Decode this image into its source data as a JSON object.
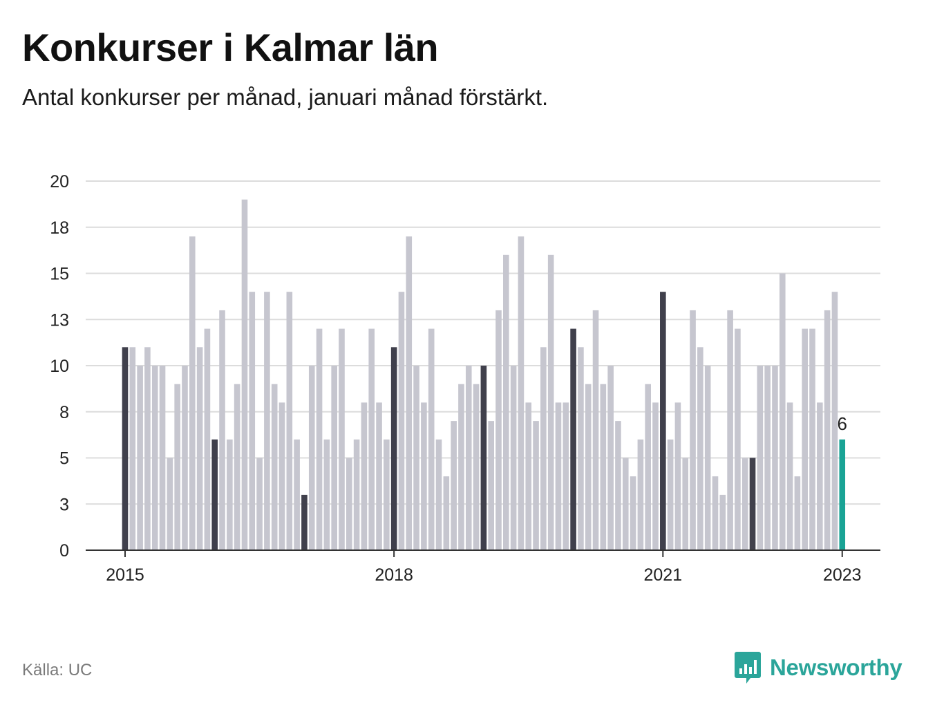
{
  "header": {
    "title": "Konkurser i Kalmar län",
    "subtitle": "Antal konkurser per månad, januari månad förstärkt."
  },
  "footer": {
    "source": "Källa: UC",
    "brand": "Newsworthy"
  },
  "colors": {
    "bar_default": "#c6c6cf",
    "bar_january": "#40404c",
    "bar_latest": "#19a395",
    "grid": "#dcdcdc",
    "axis": "#333333",
    "brand": "#2ba59a"
  },
  "icons": {
    "brand": "bar-chart-speech-bubble-icon"
  },
  "chart_data": {
    "type": "bar",
    "title": "Konkurser i Kalmar län",
    "subtitle": "Antal konkurser per månad, januari månad förstärkt.",
    "xlabel": "",
    "ylabel": "",
    "ylim": [
      0,
      20
    ],
    "y_ticks": [
      0,
      2.5,
      5,
      7.5,
      10,
      12.5,
      15,
      17.5,
      20
    ],
    "y_tick_labels": [
      "0",
      "3",
      "5",
      "8",
      "10",
      "13",
      "15",
      "18",
      "20"
    ],
    "x_ticks": [
      {
        "index": 0,
        "label": "2015"
      },
      {
        "index": 36,
        "label": "2018"
      },
      {
        "index": 72,
        "label": "2021"
      },
      {
        "index": 96,
        "label": "2023"
      }
    ],
    "start": "2015-01",
    "highlight": "januari",
    "latest_label": "6",
    "values": [
      11,
      11,
      10,
      11,
      10,
      10,
      5,
      9,
      10,
      17,
      11,
      12,
      6,
      13,
      6,
      9,
      19,
      14,
      5,
      14,
      9,
      8,
      14,
      6,
      3,
      10,
      12,
      6,
      10,
      12,
      5,
      6,
      8,
      12,
      8,
      6,
      11,
      14,
      17,
      10,
      8,
      12,
      6,
      4,
      7,
      9,
      10,
      9,
      10,
      7,
      13,
      16,
      10,
      17,
      8,
      7,
      11,
      16,
      8,
      8,
      12,
      11,
      9,
      13,
      9,
      10,
      7,
      5,
      4,
      6,
      9,
      8,
      14,
      6,
      8,
      5,
      13,
      11,
      10,
      4,
      3,
      13,
      12,
      5,
      5,
      10,
      10,
      10,
      15,
      8,
      4,
      12,
      12,
      8,
      13,
      14,
      6
    ]
  }
}
